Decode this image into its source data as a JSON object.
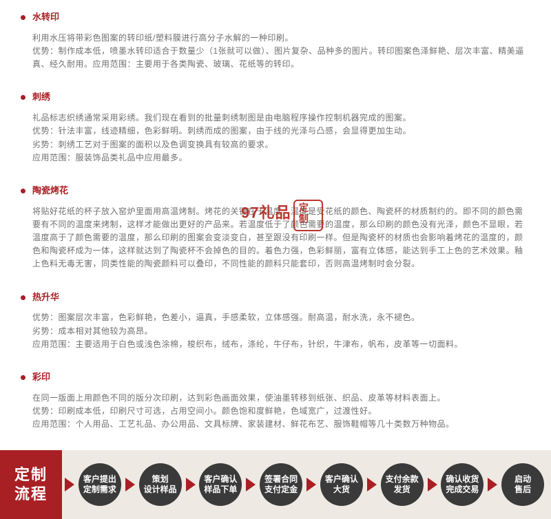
{
  "accent_color": "#a81f24",
  "sections": [
    {
      "title": "水转印",
      "body": "利用水压将带彩色图案的转印纸/塑料膜进行高分子水解的一种印刷。\n优势：制作成本低，喷墨水转印适合于数量少（1张就可以做）、图片复杂、品种多的图片。转印图案色泽鲜艳、层次丰富、精美逼真、经久耐用。应用范围：主要用于各类陶瓷、玻璃、花纸等的转印。"
    },
    {
      "title": "刺绣",
      "body": "礼品标志织绣通常采用彩绣。我们现在看到的批量刺绣制图是由电脑程序操作控制机器完成的图案。\n优势：针法丰富，线迹精细，色彩鲜明。刺绣而成的图案，由于线的光泽与凸感，会显得更加生动。\n劣势：刺绣工艺对于图案的面积以及色调变换具有较高的要求。\n应用范围：服装饰品类礼品中应用最多。"
    },
    {
      "title": "陶瓷烤花",
      "body": "将贴好花纸的杯子放入窑炉里面用高温烤制。烤花的关键在于温度，温度是受花纸的颜色、陶瓷杯的材质制约的。即不同的颜色需要有不同的温度来烤制，这样才能做出更好的产品来。若温度低于了颜色需要的温度，那么印刷的颜色没有光泽，颜色不显眼，若温度高于了颜色需要的温度，那么印刷的图案会变淡变白，甚至跟没有印刷一样。但是陶瓷杯的材质也会影响着烤花的温度的，颜色和陶瓷杯成为一体，这样就达到了陶瓷杯不会掉色的目的。着色力强，色彩鲜丽，富有立体感，能达到手工上色的艺术效果。釉上色料无毒无害，同类性能的陶瓷颜料可以叠印，不同性能的颜料只能套印，否则高温烤制时会分裂。"
    },
    {
      "title": "热升华",
      "body": "优势：图案层次丰富，色彩鲜艳，色差小，逼真，手感柔软，立体感强。耐高温，耐水洗，永不褪色。\n劣势：成本相对其他较为高昂。\n应用范围：主要适用于白色或浅色涂棉，梭织布，绒布，涤纶，牛仔布，针织，牛津布，帆布，皮革等一切面料。"
    },
    {
      "title": "彩印",
      "body": "在同一版面上用颜色不同的版分次印刷，达到彩色画面效果，使油墨转移到纸张、织品、皮革等材料表面上。\n优势：印刷成本低，印刷尺寸可选，占用空间小。颜色饱和度鲜艳，色域宽广，过渡性好。\n应用范围：个人用品、工艺礼品、办公用品、文具标牌、家装建材、鲜花布艺、服饰鞋帽等几十类数万种物品。"
    }
  ],
  "watermark": {
    "text": "97礼品",
    "stamp": "定制"
  },
  "flow": {
    "start": "定制\n流程",
    "steps": [
      "客户提出\n定制需求",
      "策划\n设计样品",
      "客户确认\n样品下单",
      "签署合同\n支付定金",
      "客户确认\n大货",
      "支付余款\n发货",
      "确认收货\n完成交易",
      "启动\n售后"
    ],
    "arrow_color": "#a81f24",
    "circle_bg": "#3a3a3a",
    "flow_bg": "#eeeae3"
  }
}
